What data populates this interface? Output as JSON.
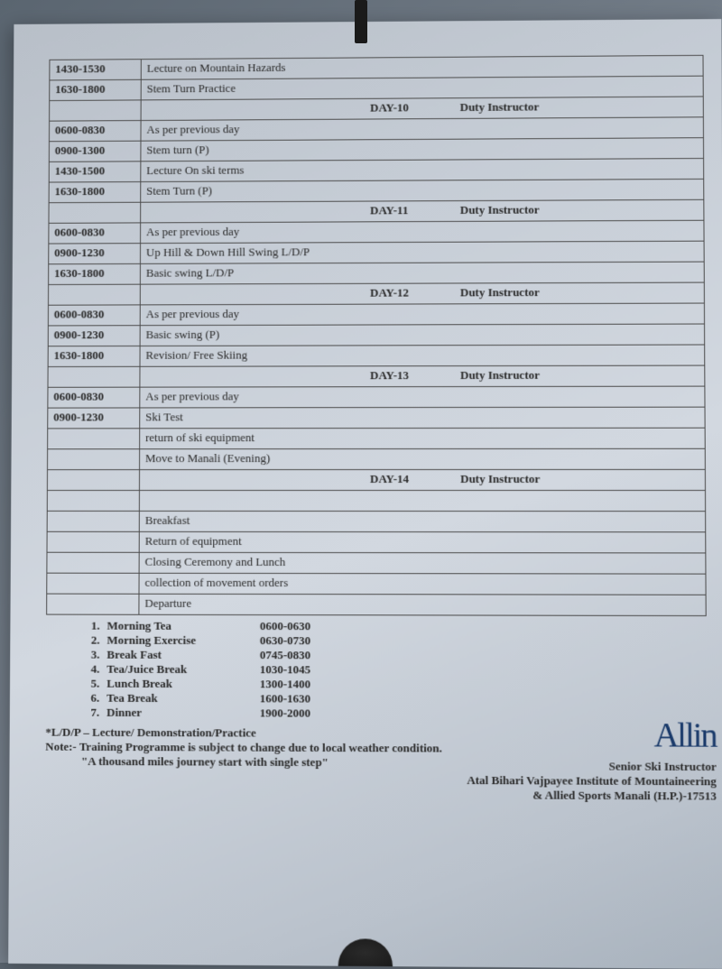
{
  "colors": {
    "paper_bg": "#c5ccd5",
    "border": "#4a4a4a",
    "text": "#2a2a2a",
    "sig_ink": "#1a3a6a"
  },
  "font": {
    "family": "Times New Roman",
    "size_pt": 13,
    "weight": "bold"
  },
  "schedule": {
    "col_widths": [
      "90px",
      "auto"
    ],
    "pre_rows": [
      {
        "time": "1430-1530",
        "text": "Lecture on Mountain Hazards"
      },
      {
        "time": "1630-1800",
        "text": "Stem Turn Practice"
      }
    ],
    "days": [
      {
        "label": "DAY-10",
        "duty": "Duty Instructor",
        "rows": [
          {
            "time": "0600-0830",
            "text": "As per previous day"
          },
          {
            "time": "0900-1300",
            "text": "Stem turn (P)"
          },
          {
            "time": "1430-1500",
            "text": "Lecture On ski terms"
          },
          {
            "time": "1630-1800",
            "text": "Stem Turn (P)"
          }
        ]
      },
      {
        "label": "DAY-11",
        "duty": "Duty Instructor",
        "rows": [
          {
            "time": "0600-0830",
            "text": "As per previous day"
          },
          {
            "time": "0900-1230",
            "text": "Up Hill & Down Hill Swing L/D/P"
          },
          {
            "time": "1630-1800",
            "text": "Basic swing L/D/P"
          }
        ]
      },
      {
        "label": "DAY-12",
        "duty": "Duty Instructor",
        "rows": [
          {
            "time": "0600-0830",
            "text": "As per previous day"
          },
          {
            "time": "0900-1230",
            "text": "Basic swing (P)"
          },
          {
            "time": "1630-1800",
            "text": "Revision/ Free Skiing"
          }
        ]
      },
      {
        "label": "DAY-13",
        "duty": "Duty Instructor",
        "rows": [
          {
            "time": "0600-0830",
            "text": "As per previous day"
          },
          {
            "time": "0900-1230",
            "text": "Ski Test"
          },
          {
            "time": "",
            "text": "return of ski equipment"
          },
          {
            "time": "",
            "text": "Move to Manali (Evening)"
          }
        ]
      },
      {
        "label": "DAY-14",
        "duty": "Duty Instructor",
        "rows": [
          {
            "time": "",
            "text": ""
          },
          {
            "time": "",
            "text": "Breakfast"
          },
          {
            "time": "",
            "text": "Return of equipment"
          },
          {
            "time": "",
            "text": "Closing Ceremony and Lunch"
          },
          {
            "time": "",
            "text": "collection of  movement orders"
          },
          {
            "time": "",
            "text": "Departure"
          }
        ]
      }
    ]
  },
  "meals": [
    {
      "n": "1.",
      "name": "Morning Tea",
      "time": "0600-0630"
    },
    {
      "n": "2.",
      "name": "Morning  Exercise",
      "time": "0630-0730"
    },
    {
      "n": "3.",
      "name": "Break Fast",
      "time": "0745-0830"
    },
    {
      "n": "4.",
      "name": "Tea/Juice Break",
      "time": "1030-1045"
    },
    {
      "n": "5.",
      "name": "Lunch Break",
      "time": "1300-1400"
    },
    {
      "n": "6.",
      "name": "Tea Break",
      "time": "1600-1630"
    },
    {
      "n": "7.",
      "name": "Dinner",
      "time": "1900-2000"
    }
  ],
  "notes": {
    "line1": "*L/D/P – Lecture/ Demonstration/Practice",
    "line2": "Note:- Training Programme is subject to change due to local weather condition.",
    "line3": "\"A thousand miles journey start with single step\""
  },
  "signature": {
    "scribble": "Allin",
    "line1": "Senior Ski Instructor",
    "line2": "Atal Bihari Vajpayee Institute of Mountaineering",
    "line3": "& Allied Sports Manali (H.P.)-17513"
  }
}
